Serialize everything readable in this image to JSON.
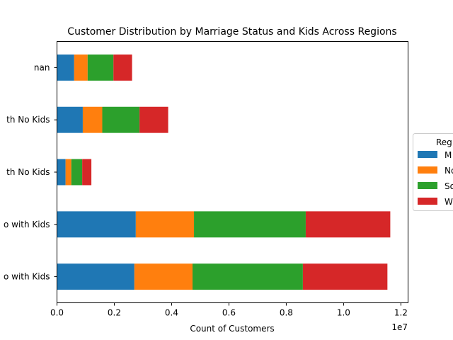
{
  "chart_data": {
    "type": "bar",
    "orientation": "horizontal",
    "stacked": true,
    "title": "Customer Distribution by Marriage Status and Kids Across Regions",
    "xlabel": "Count of Customers",
    "ylabel": "",
    "x_offset_text": "1e7",
    "xlim": [
      0,
      12250000
    ],
    "x_ticks": [
      0,
      2000000,
      4000000,
      6000000,
      8000000,
      10000000,
      12000000
    ],
    "x_tick_labels": [
      "0.0",
      "0.2",
      "0.4",
      "0.6",
      "0.8",
      "1.0",
      "1.2"
    ],
    "categories": [
      "nan",
      "th No Kids",
      "th No Kids",
      "o with Kids",
      "o with Kids"
    ],
    "series": [
      {
        "name": "M",
        "color": "#1f77b4",
        "values": [
          600000,
          900000,
          300000,
          2750000,
          2700000
        ]
      },
      {
        "name": "No",
        "color": "#ff7f0e",
        "values": [
          470000,
          680000,
          200000,
          2030000,
          2030000
        ]
      },
      {
        "name": "So",
        "color": "#2ca02c",
        "values": [
          900000,
          1300000,
          380000,
          3900000,
          3850000
        ]
      },
      {
        "name": "W",
        "color": "#d62728",
        "values": [
          650000,
          1000000,
          320000,
          2950000,
          2950000
        ]
      }
    ],
    "legend": {
      "title": "Reg",
      "placement": "outside-right"
    },
    "grid": false
  }
}
